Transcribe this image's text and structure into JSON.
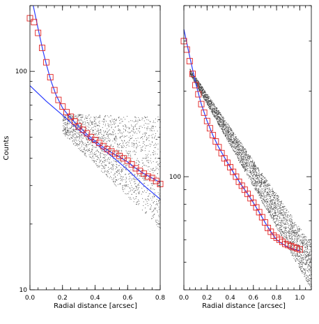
{
  "chart_data": [
    {
      "type": "scatter",
      "scale": "log-y",
      "xlabel": "Radial distance [arcsec]",
      "ylabel": "Counts",
      "xlim": [
        0.0,
        0.8
      ],
      "ylim": [
        10,
        200
      ],
      "x_ticks": [
        "0.0",
        "0.2",
        "0.4",
        "0.6",
        "0.8"
      ],
      "y_ticks": [
        "10",
        "100"
      ],
      "y_tick_values": [
        10,
        100
      ],
      "colors": {
        "markers": "#e02020",
        "fits": "#2a3cff",
        "pixels": "#444444"
      },
      "pixel_cloud": {
        "x_start": 0.2,
        "x_end": 0.8,
        "lower_start": 52,
        "lower_end": 19,
        "upper_start": 64,
        "upper_end": 62
      },
      "series": [
        {
          "kind": "square-markers",
          "x": [
            0.0,
            0.025,
            0.05,
            0.075,
            0.1,
            0.125,
            0.15,
            0.175,
            0.2,
            0.225,
            0.25,
            0.275,
            0.3,
            0.325,
            0.35,
            0.375,
            0.4,
            0.425,
            0.45,
            0.475,
            0.5,
            0.525,
            0.55,
            0.575,
            0.6,
            0.625,
            0.65,
            0.675,
            0.7,
            0.725,
            0.75,
            0.775,
            0.8
          ],
          "y": [
            175,
            168,
            150,
            128,
            110,
            94,
            82,
            74,
            69,
            65,
            62,
            59,
            56,
            54,
            52,
            50,
            48.5,
            47,
            45.5,
            44,
            43,
            42,
            41,
            40,
            39,
            37.5,
            36,
            35,
            34,
            33,
            32.5,
            31.5,
            30.5
          ]
        },
        {
          "kind": "fit-line",
          "x": [
            0.02,
            0.04,
            0.06,
            0.08,
            0.1,
            0.13,
            0.16,
            0.2,
            0.25,
            0.3,
            0.35,
            0.4,
            0.45,
            0.5,
            0.55,
            0.6,
            0.65,
            0.7,
            0.75,
            0.8
          ],
          "y": [
            200,
            170,
            145,
            124,
            108,
            90,
            78,
            68,
            61,
            56,
            51.5,
            48,
            45,
            42.5,
            40.5,
            38.5,
            36,
            34,
            32.5,
            31
          ]
        },
        {
          "kind": "fit-line",
          "x": [
            0.0,
            0.1,
            0.2,
            0.3,
            0.4,
            0.5,
            0.6,
            0.7,
            0.8
          ],
          "y": [
            86,
            73,
            63,
            54,
            47,
            41,
            35.5,
            30,
            26
          ]
        }
      ]
    },
    {
      "type": "scatter",
      "scale": "log-y",
      "xlabel": "Radial distance [arcsec]",
      "ylabel": "",
      "xlim": [
        0.0,
        1.1
      ],
      "ylim": [
        40,
        400
      ],
      "x_ticks": [
        "0.0",
        "0.2",
        "0.4",
        "0.6",
        "0.8",
        "1.0"
      ],
      "y_ticks": [
        "100"
      ],
      "y_tick_values": [
        100
      ],
      "colors": {
        "markers": "#e02020",
        "fits": "#2a3cff",
        "pixels": "#444444"
      },
      "pixel_cloud": {
        "x_start": 0.05,
        "x_end": 1.1,
        "lower_start": 230,
        "lower_end": 40,
        "upper_start": 240,
        "upper_end": 58
      },
      "series": [
        {
          "kind": "square-markers",
          "x": [
            0.0,
            0.025,
            0.05,
            0.075,
            0.1,
            0.125,
            0.15,
            0.175,
            0.2,
            0.225,
            0.25,
            0.275,
            0.3,
            0.325,
            0.35,
            0.375,
            0.4,
            0.425,
            0.45,
            0.475,
            0.5,
            0.525,
            0.55,
            0.575,
            0.6,
            0.625,
            0.65,
            0.675,
            0.7,
            0.725,
            0.75,
            0.775,
            0.8,
            0.825,
            0.85,
            0.875,
            0.9,
            0.925,
            0.95,
            0.975,
            1.0
          ],
          "y": [
            300,
            280,
            255,
            230,
            210,
            195,
            180,
            168,
            157,
            148,
            140,
            133,
            127,
            121,
            116,
            112,
            108,
            104,
            100,
            96,
            93,
            90,
            87,
            84,
            81,
            78,
            75,
            72,
            69,
            66,
            64,
            62,
            61,
            60,
            59,
            58,
            57.5,
            57,
            56.5,
            56,
            55.5
          ]
        },
        {
          "kind": "fit-line",
          "x": [
            0.0,
            0.05,
            0.1,
            0.15,
            0.2,
            0.25,
            0.3,
            0.35,
            0.4,
            0.45,
            0.5,
            0.55,
            0.6,
            0.65,
            0.7,
            0.75,
            0.8,
            0.85,
            0.9,
            0.95,
            1.0
          ],
          "y": [
            330,
            265,
            215,
            180,
            157,
            140,
            127,
            117,
            108,
            100,
            93,
            87,
            81,
            75,
            69,
            64,
            60,
            58,
            56.5,
            55.5,
            55
          ]
        }
      ]
    }
  ]
}
